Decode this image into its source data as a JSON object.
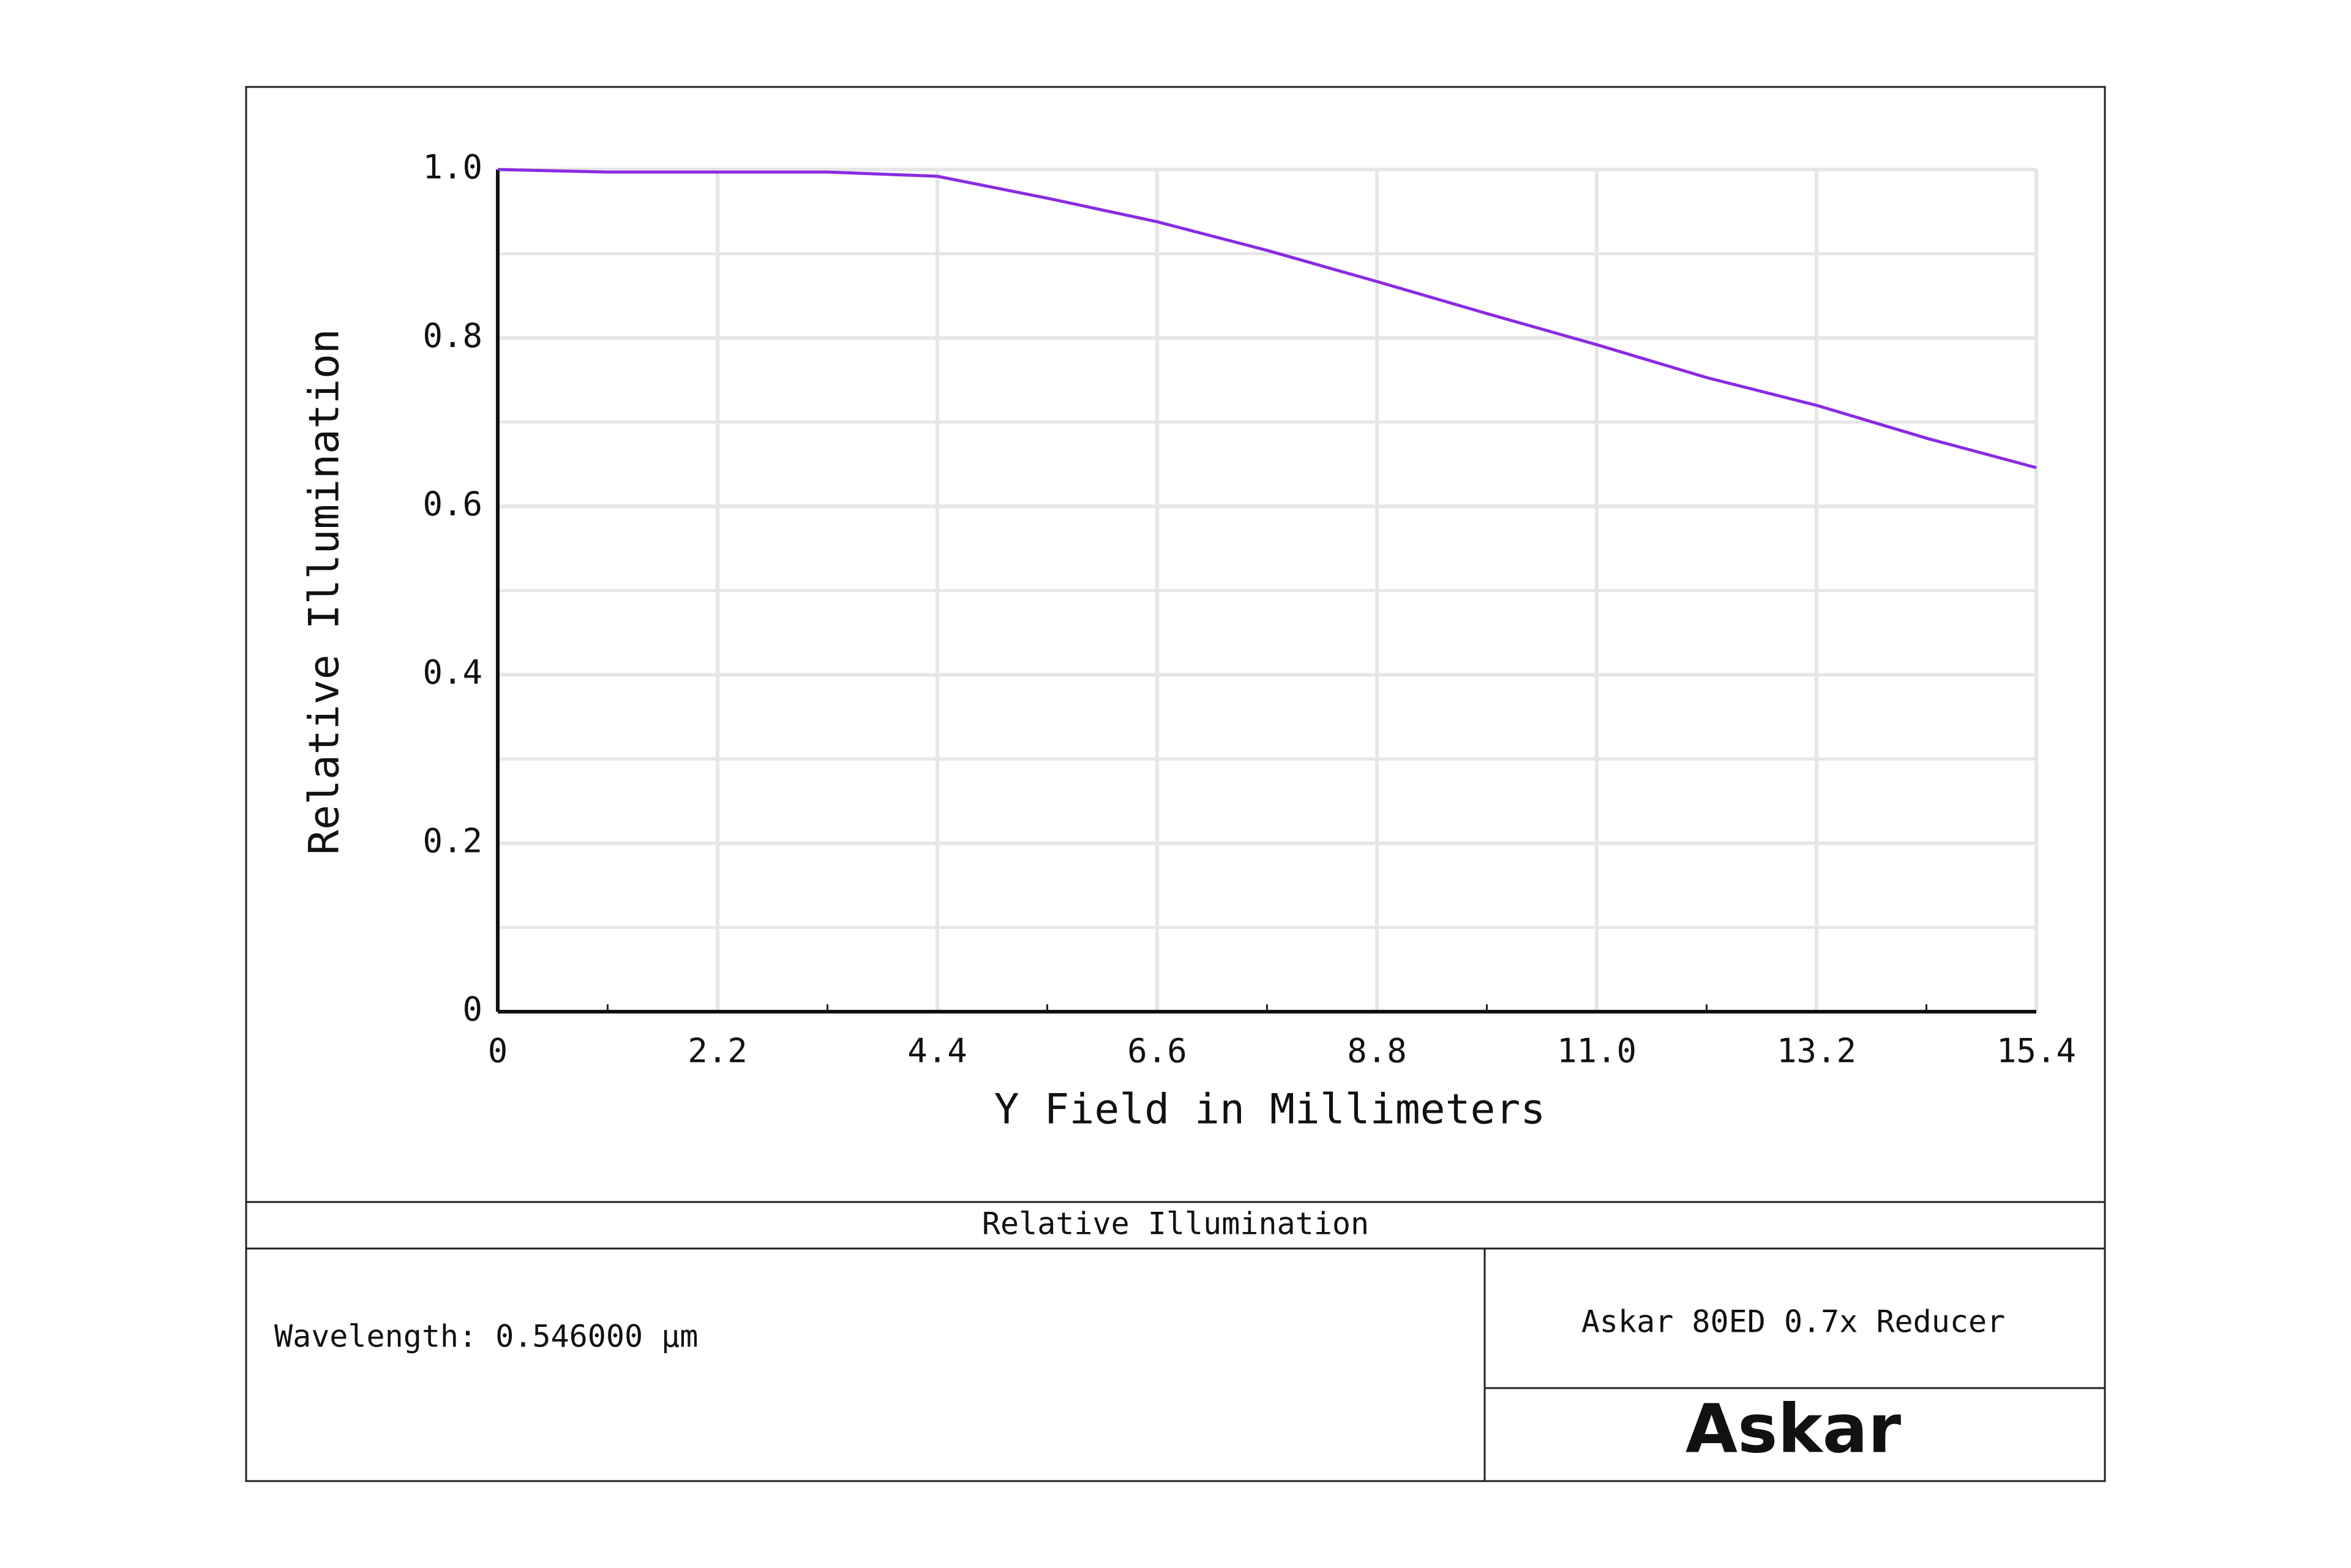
{
  "chart_data": {
    "type": "line",
    "xlabel": "Y Field in Millimeters",
    "ylabel": "Relative Illumination",
    "x": [
      0,
      1.1,
      2.2,
      3.3,
      4.4,
      5.5,
      6.6,
      7.7,
      8.8,
      9.9,
      11.0,
      12.1,
      13.2,
      14.3,
      15.4
    ],
    "values": [
      1.0,
      0.997,
      0.997,
      0.997,
      0.992,
      0.966,
      0.938,
      0.904,
      0.867,
      0.829,
      0.792,
      0.753,
      0.72,
      0.681,
      0.646
    ],
    "color": "#8a2be2",
    "xlim": [
      0,
      15.4
    ],
    "ylim": [
      0,
      1
    ],
    "xticks": [
      0,
      2.2,
      4.4,
      6.6,
      8.8,
      {
        "value": 11,
        "label": "11.0"
      },
      13.2,
      15.4
    ],
    "yticks": [
      0,
      0.2,
      0.4,
      0.6,
      0.8,
      {
        "value": 1,
        "label": "1.0"
      }
    ],
    "grid": true
  },
  "footer": {
    "title": "Relative Illumination",
    "wavelength": "Wavelength: 0.546000 µm",
    "lens": "Askar 80ED 0.7x Reducer",
    "logo": "Askar"
  }
}
